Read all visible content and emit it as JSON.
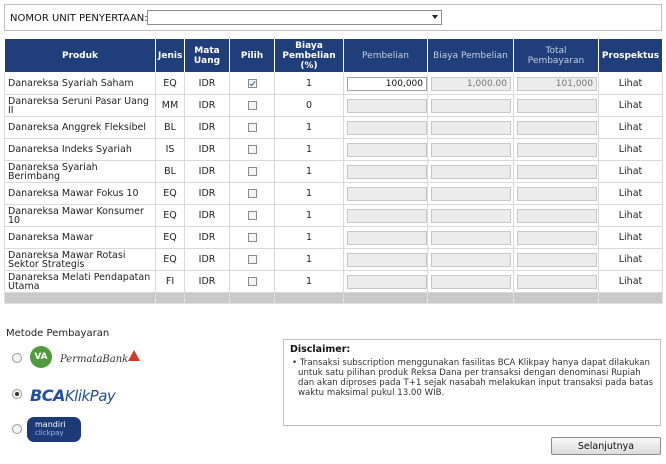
{
  "unit": {
    "label": "NOMOR UNIT PENYERTAAN:",
    "selected": ""
  },
  "table": {
    "headers": {
      "produk": "Produk",
      "jenis": "Jenis",
      "mata_uang": "Mata Uang",
      "pilih": "Pilih",
      "biaya_pembelian_pct": "Biaya Pembelian (%)",
      "pembelian": "Pembelian",
      "biaya_pembelian": "Biaya Pembelian",
      "total_pembayaran": "Total Pembayaran",
      "prospektus": "Prospektus"
    },
    "rows": [
      {
        "produk": "Danareksa Syariah Saham",
        "jenis": "EQ",
        "mata_uang": "IDR",
        "pilih": true,
        "biaya_pct": "1",
        "pembelian": "100,000",
        "biaya": "1,000.00",
        "total": "101,000",
        "link": "Lihat"
      },
      {
        "produk": "Danareksa Seruni Pasar Uang II",
        "jenis": "MM",
        "mata_uang": "IDR",
        "pilih": false,
        "biaya_pct": "0",
        "pembelian": "",
        "biaya": "",
        "total": "",
        "link": "Lihat"
      },
      {
        "produk": "Danareksa Anggrek Fleksibel",
        "jenis": "BL",
        "mata_uang": "IDR",
        "pilih": false,
        "biaya_pct": "1",
        "pembelian": "",
        "biaya": "",
        "total": "",
        "link": "Lihat"
      },
      {
        "produk": "Danareksa Indeks Syariah",
        "jenis": "IS",
        "mata_uang": "IDR",
        "pilih": false,
        "biaya_pct": "1",
        "pembelian": "",
        "biaya": "",
        "total": "",
        "link": "Lihat"
      },
      {
        "produk": "Danareksa Syariah Berimbang",
        "jenis": "BL",
        "mata_uang": "IDR",
        "pilih": false,
        "biaya_pct": "1",
        "pembelian": "",
        "biaya": "",
        "total": "",
        "link": "Lihat"
      },
      {
        "produk": "Danareksa Mawar Fokus 10",
        "jenis": "EQ",
        "mata_uang": "IDR",
        "pilih": false,
        "biaya_pct": "1",
        "pembelian": "",
        "biaya": "",
        "total": "",
        "link": "Lihat"
      },
      {
        "produk": "Danareksa Mawar Konsumer 10",
        "jenis": "EQ",
        "mata_uang": "IDR",
        "pilih": false,
        "biaya_pct": "1",
        "pembelian": "",
        "biaya": "",
        "total": "",
        "link": "Lihat"
      },
      {
        "produk": "Danareksa Mawar",
        "jenis": "EQ",
        "mata_uang": "IDR",
        "pilih": false,
        "biaya_pct": "1",
        "pembelian": "",
        "biaya": "",
        "total": "",
        "link": "Lihat"
      },
      {
        "produk": "Danareksa Mawar Rotasi Sektor Strategis",
        "jenis": "EQ",
        "mata_uang": "IDR",
        "pilih": false,
        "biaya_pct": "1",
        "pembelian": "",
        "biaya": "",
        "total": "",
        "link": "Lihat"
      },
      {
        "produk": "Danareksa Melati Pendapatan Utama",
        "jenis": "FI",
        "mata_uang": "IDR",
        "pilih": false,
        "biaya_pct": "1",
        "pembelian": "",
        "biaya": "",
        "total": "",
        "link": "Lihat"
      }
    ]
  },
  "payment": {
    "label": "Metode Pembayaran",
    "options": [
      {
        "name": "PermataBank Virtual Account",
        "logo_text": "VA",
        "brand": "PermataBank",
        "selected": false
      },
      {
        "name": "BCA KlikPay",
        "brand_bold": "BCA",
        "brand_rest": "KlikPay",
        "selected": true
      },
      {
        "name": "mandiri clickpay",
        "line1": "mandiri",
        "line2": "clickpay",
        "selected": false
      }
    ]
  },
  "disclaimer": {
    "title": "Disclaimer:",
    "text": "Transaksi subscription menggunakan fasilitas BCA Klikpay hanya dapat dilakukan untuk satu pilihan produk Reksa Dana per transaksi dengan denominasi Rupiah dan akan diproses pada T+1 sejak nasabah melakukan input transaksi pada batas waktu maksimal pukul 13.00 WIB."
  },
  "next_button": "Selanjutnya",
  "colors": {
    "header_bg": "#203f7a",
    "bca_blue": "#1f4fa0",
    "permata_green": "#4f9a3b",
    "mandiri_navy": "#1c3a78"
  }
}
